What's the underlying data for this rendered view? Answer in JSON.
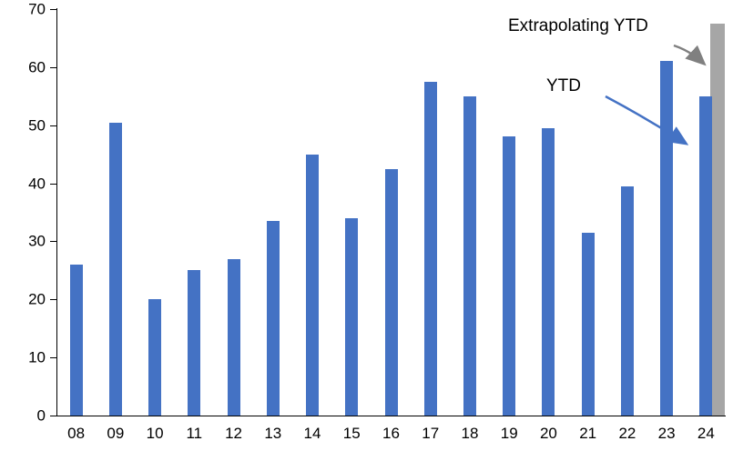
{
  "chart_data": {
    "type": "bar",
    "title": "",
    "xlabel": "",
    "ylabel": "",
    "categories": [
      "08",
      "09",
      "10",
      "11",
      "12",
      "13",
      "14",
      "15",
      "16",
      "17",
      "18",
      "19",
      "20",
      "21",
      "22",
      "23",
      "24"
    ],
    "series": [
      {
        "name": "YTD",
        "color": "#4472C4",
        "values": [
          26,
          50.5,
          20,
          25,
          27,
          33.5,
          45,
          34,
          42.5,
          57.5,
          55,
          48,
          49.5,
          31.5,
          39.5,
          61,
          55
        ]
      },
      {
        "name": "Extrapolating YTD",
        "color": "#A6A6A6",
        "values": [
          null,
          null,
          null,
          null,
          null,
          null,
          null,
          null,
          null,
          null,
          null,
          null,
          null,
          null,
          null,
          null,
          67.5
        ]
      }
    ],
    "ylim": [
      0,
      70
    ],
    "yticks": [
      0,
      10,
      20,
      30,
      40,
      50,
      60,
      70
    ],
    "grid": false,
    "legend_position": "none"
  },
  "annotations": {
    "extrapolating_label": "Extrapolating YTD",
    "ytd_label": "YTD"
  },
  "colors": {
    "bar_blue": "#4472C4",
    "bar_gray": "#A6A6A6",
    "arrow_gray": "#808080",
    "arrow_blue": "#4472C4",
    "axis": "#000000"
  }
}
